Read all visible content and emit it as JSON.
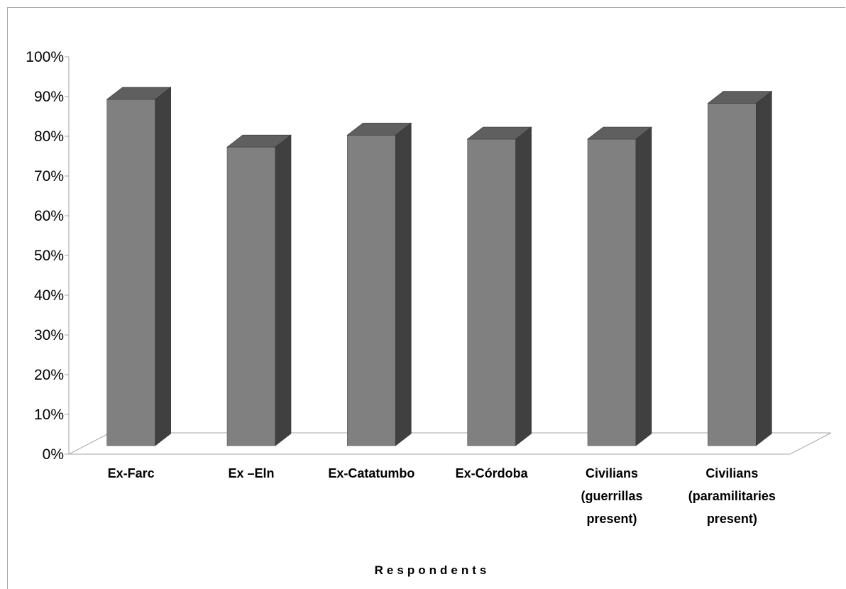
{
  "chart_data": {
    "type": "bar",
    "style": "3d-column",
    "title": "",
    "xlabel": "Respondents",
    "ylabel": "",
    "ylim": [
      0,
      100
    ],
    "y_tick_labels": [
      "0%",
      "10%",
      "20%",
      "30%",
      "40%",
      "50%",
      "60%",
      "70%",
      "80%",
      "90%",
      "100%"
    ],
    "categories": [
      [
        "Ex-Farc"
      ],
      [
        "Ex –Eln"
      ],
      [
        "Ex-Catatumbo"
      ],
      [
        "Ex-Córdoba"
      ],
      [
        "Civilians",
        "(guerrillas",
        "present)"
      ],
      [
        "Civilians",
        "(paramilitaries",
        "present)"
      ]
    ],
    "values": [
      90,
      78,
      81,
      80,
      80,
      89
    ],
    "colors": {
      "front": "#808080",
      "side": "#404040",
      "top": "#5f5f5f",
      "axis": "#a6a6a6"
    },
    "grid": false,
    "legend": "none"
  }
}
